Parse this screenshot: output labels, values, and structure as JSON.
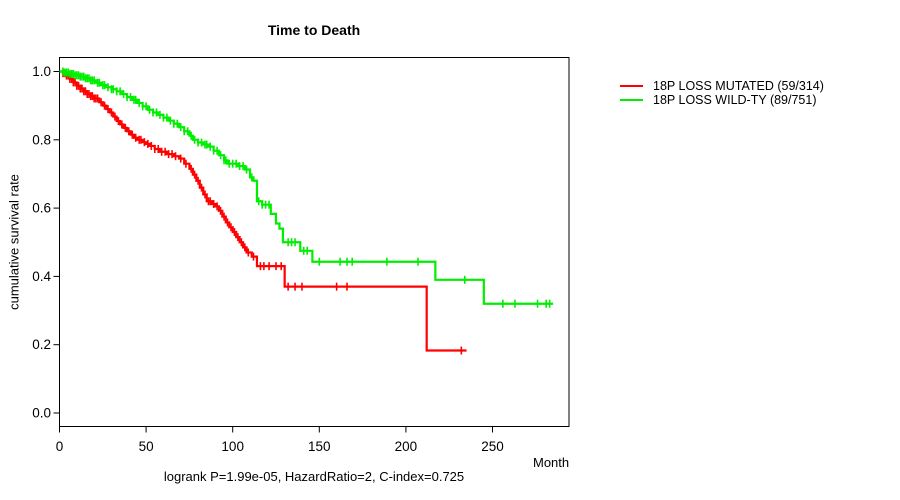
{
  "title": "Time to Death",
  "annotation": "logrank P=1.99e-05, HazardRatio=2, C-index=0.725",
  "axes": {
    "x": {
      "label": "Month",
      "tick_values": [
        0,
        50,
        100,
        150,
        200,
        250
      ],
      "tick_labels": [
        "0",
        "50",
        "100",
        "150",
        "200",
        "250"
      ],
      "range": [
        0,
        294
      ]
    },
    "y": {
      "label": "cumulative survival rate",
      "tick_values": [
        0,
        0.2,
        0.4,
        0.6,
        0.8,
        1
      ],
      "tick_labels": [
        "0.0",
        "0.2",
        "0.4",
        "0.6",
        "0.8",
        "1.0"
      ],
      "range": [
        0,
        1
      ]
    }
  },
  "chart_data": {
    "type": "line",
    "subtype": "kaplan_meier_step",
    "title": "Time to Death",
    "xlabel": "Month",
    "ylabel": "cumulative survival rate",
    "xlim": [
      0,
      294
    ],
    "ylim": [
      0,
      1
    ],
    "grid": false,
    "legend_position": "right-outside",
    "stats": {
      "logrank_P": "1.99e-05",
      "HazardRatio": "2",
      "C_index": "0.725"
    },
    "series": [
      {
        "name": "18P LOSS MUTATED (59/314)",
        "color": "#ff0000",
        "end_month": 235,
        "steps": [
          [
            0,
            1.0
          ],
          [
            2,
            0.995
          ],
          [
            4,
            0.988
          ],
          [
            6,
            0.978
          ],
          [
            8,
            0.968
          ],
          [
            10,
            0.958
          ],
          [
            12,
            0.95
          ],
          [
            14,
            0.942
          ],
          [
            16,
            0.934
          ],
          [
            18,
            0.928
          ],
          [
            20,
            0.921
          ],
          [
            23,
            0.91
          ],
          [
            25,
            0.9
          ],
          [
            27,
            0.89
          ],
          [
            29,
            0.88
          ],
          [
            31,
            0.868
          ],
          [
            33,
            0.855
          ],
          [
            35,
            0.845
          ],
          [
            37,
            0.835
          ],
          [
            39,
            0.825
          ],
          [
            41,
            0.815
          ],
          [
            43,
            0.806
          ],
          [
            45,
            0.8
          ],
          [
            48,
            0.793
          ],
          [
            50,
            0.788
          ],
          [
            52,
            0.782
          ],
          [
            55,
            0.773
          ],
          [
            58,
            0.765
          ],
          [
            62,
            0.758
          ],
          [
            66,
            0.752
          ],
          [
            69,
            0.745
          ],
          [
            72,
            0.73
          ],
          [
            75,
            0.715
          ],
          [
            77,
            0.698
          ],
          [
            79,
            0.68
          ],
          [
            81,
            0.66
          ],
          [
            83,
            0.64
          ],
          [
            85,
            0.62
          ],
          [
            88,
            0.612
          ],
          [
            90,
            0.605
          ],
          [
            92,
            0.592
          ],
          [
            94,
            0.575
          ],
          [
            96,
            0.558
          ],
          [
            98,
            0.544
          ],
          [
            100,
            0.53
          ],
          [
            102,
            0.515
          ],
          [
            104,
            0.5
          ],
          [
            106,
            0.485
          ],
          [
            108,
            0.47
          ],
          [
            111,
            0.458
          ],
          [
            114,
            0.43
          ],
          [
            130,
            0.37
          ],
          [
            212,
            0.183
          ]
        ],
        "censor_months": [
          2,
          3,
          4,
          5,
          6,
          7,
          8,
          9,
          10,
          11,
          12,
          13,
          14,
          15,
          16,
          17,
          18,
          19,
          20,
          21,
          22,
          24,
          26,
          28,
          30,
          32,
          34,
          36,
          38,
          40,
          42,
          44,
          46,
          47,
          49,
          51,
          53,
          55,
          57,
          59,
          61,
          63,
          65,
          67,
          70,
          73,
          76,
          78,
          80,
          82,
          84,
          86,
          87,
          89,
          91,
          93,
          95,
          97,
          99,
          101,
          103,
          105,
          107,
          109,
          112,
          116,
          118,
          121,
          125,
          128,
          132,
          136,
          140,
          160,
          166,
          232
        ]
      },
      {
        "name": "18P LOSS WILD-TY (89/751)",
        "color": "#00ee00",
        "end_month": 285,
        "steps": [
          [
            0,
            1.0
          ],
          [
            3,
            0.997
          ],
          [
            6,
            0.993
          ],
          [
            9,
            0.989
          ],
          [
            12,
            0.985
          ],
          [
            15,
            0.98
          ],
          [
            18,
            0.974
          ],
          [
            21,
            0.967
          ],
          [
            24,
            0.96
          ],
          [
            27,
            0.954
          ],
          [
            30,
            0.948
          ],
          [
            33,
            0.942
          ],
          [
            36,
            0.934
          ],
          [
            39,
            0.925
          ],
          [
            42,
            0.917
          ],
          [
            45,
            0.908
          ],
          [
            48,
            0.898
          ],
          [
            51,
            0.888
          ],
          [
            54,
            0.88
          ],
          [
            57,
            0.873
          ],
          [
            60,
            0.865
          ],
          [
            63,
            0.856
          ],
          [
            66,
            0.847
          ],
          [
            69,
            0.837
          ],
          [
            72,
            0.825
          ],
          [
            75,
            0.812
          ],
          [
            77,
            0.8
          ],
          [
            80,
            0.792
          ],
          [
            83,
            0.786
          ],
          [
            86,
            0.78
          ],
          [
            89,
            0.768
          ],
          [
            92,
            0.755
          ],
          [
            95,
            0.74
          ],
          [
            97,
            0.73
          ],
          [
            103,
            0.723
          ],
          [
            107,
            0.713
          ],
          [
            110,
            0.69
          ],
          [
            112,
            0.68
          ],
          [
            114,
            0.62
          ],
          [
            117,
            0.61
          ],
          [
            122,
            0.583
          ],
          [
            125,
            0.555
          ],
          [
            127,
            0.54
          ],
          [
            129,
            0.5
          ],
          [
            139,
            0.475
          ],
          [
            146,
            0.443
          ],
          [
            217,
            0.39
          ],
          [
            245,
            0.32
          ]
        ],
        "censor_months": [
          2,
          3,
          4,
          5,
          6,
          7,
          8,
          9,
          10,
          11,
          12,
          13,
          14,
          15,
          16,
          17,
          18,
          19,
          20,
          22,
          23,
          25,
          26,
          28,
          30,
          31,
          33,
          35,
          37,
          39,
          41,
          43,
          44,
          46,
          48,
          50,
          52,
          54,
          56,
          58,
          60,
          62,
          64,
          66,
          68,
          70,
          72,
          74,
          76,
          78,
          80,
          82,
          84,
          85,
          87,
          89,
          91,
          93,
          95,
          96,
          98,
          100,
          102,
          104,
          106,
          108,
          111,
          115,
          117,
          119,
          121,
          132,
          134,
          136,
          141,
          143,
          150,
          162,
          166,
          169,
          189,
          207,
          234,
          256,
          263,
          276,
          281,
          283
        ]
      }
    ]
  }
}
